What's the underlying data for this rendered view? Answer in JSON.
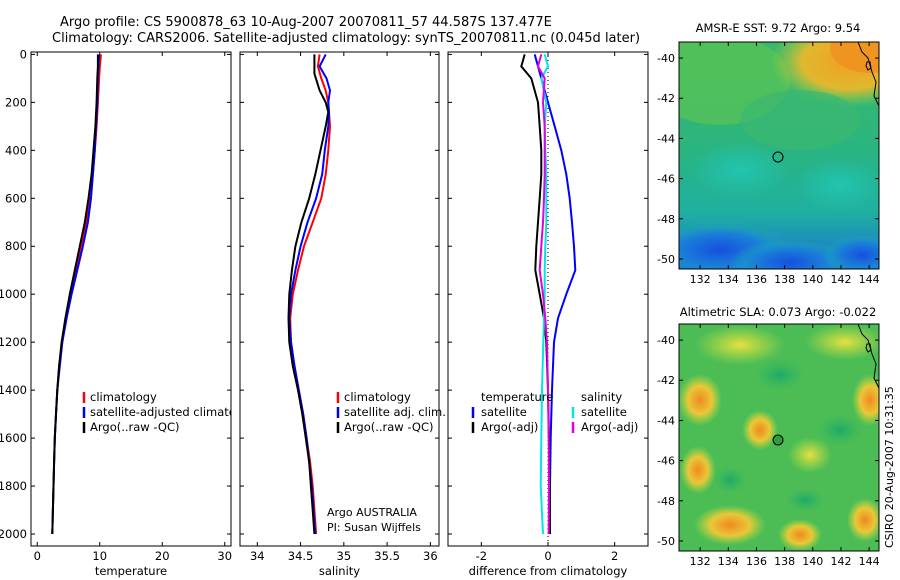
{
  "header": {
    "title_line1": "Argo profile: CS 5900878_63 10-Aug-2007 20070811_57 44.587S 137.477E",
    "title_line2": "Climatology: CARS2006. Satellite-adjusted climatology: synTS_20070811.nc (0.045d later)"
  },
  "colors": {
    "climatology": "#ff0000",
    "satellite": "#0000ff",
    "argo": "#000000",
    "satellite_diff_s": "#00e5e5",
    "argo_adj_s": "#e000e0"
  },
  "chart_data": [
    {
      "type": "line",
      "xlabel": "temperature",
      "ylabel": "",
      "xlim": [
        -1,
        31
      ],
      "ylim": [
        2050,
        -10
      ],
      "xticks": [
        "0",
        "10",
        "20",
        "30"
      ],
      "yticks": [
        "0",
        "200",
        "400",
        "600",
        "800",
        "1000",
        "1200",
        "1400",
        "1600",
        "1800",
        "2000"
      ],
      "legend": [
        "climatology",
        "satellite-adjusted climatology",
        "Argo(..raw -QC)"
      ],
      "legend_position": "lower-left",
      "series": [
        {
          "name": "climatology",
          "color": "#ff0000",
          "y": [
            0,
            50,
            100,
            200,
            300,
            400,
            500,
            600,
            700,
            800,
            900,
            1000,
            1100,
            1200,
            1300,
            1400,
            1500,
            1600,
            1700,
            1800,
            1900,
            2000
          ],
          "values": [
            10.2,
            10.0,
            9.9,
            9.7,
            9.5,
            9.2,
            8.9,
            8.5,
            7.9,
            7.0,
            6.2,
            5.4,
            4.6,
            4.0,
            3.5,
            3.2,
            3.0,
            2.8,
            2.7,
            2.6,
            2.5,
            2.4
          ]
        },
        {
          "name": "satellite-adjusted climatology",
          "color": "#0000ff",
          "y": [
            0,
            50,
            100,
            200,
            300,
            400,
            500,
            600,
            700,
            800,
            900,
            1000,
            1100,
            1200,
            1300,
            1400,
            1500,
            1600,
            1700,
            1800,
            1900,
            2000
          ],
          "values": [
            9.9,
            9.8,
            9.7,
            9.6,
            9.4,
            9.2,
            8.9,
            8.6,
            8.1,
            7.3,
            6.4,
            5.5,
            4.7,
            4.0,
            3.6,
            3.2,
            3.0,
            2.8,
            2.7,
            2.6,
            2.5,
            2.4
          ]
        },
        {
          "name": "Argo(..raw -QC)",
          "color": "#000000",
          "y": [
            0,
            50,
            100,
            200,
            300,
            400,
            500,
            600,
            700,
            800,
            900,
            1000,
            1100,
            1200,
            1300,
            1400,
            1500,
            1600,
            1700,
            1800,
            1900,
            2000
          ],
          "values": [
            9.7,
            9.7,
            9.6,
            9.5,
            9.3,
            9.0,
            8.7,
            8.2,
            7.6,
            6.8,
            6.0,
            5.2,
            4.5,
            3.9,
            3.5,
            3.2,
            3.0,
            2.8,
            2.7,
            2.6,
            2.5,
            2.4
          ]
        }
      ]
    },
    {
      "type": "line",
      "xlabel": "salinity",
      "xlim": [
        33.8,
        36.1
      ],
      "ylim": [
        2050,
        -10
      ],
      "xticks": [
        "34",
        "34.5",
        "35",
        "35.5",
        "36"
      ],
      "legend": [
        "climatology",
        "satellite adj. clim.",
        "Argo(..raw -QC)"
      ],
      "legend_position": "lower-right",
      "annotation": [
        "Argo AUSTRALIA",
        "PI: Susan Wijffels"
      ],
      "series": [
        {
          "name": "climatology",
          "color": "#ff0000",
          "y": [
            0,
            50,
            100,
            150,
            200,
            250,
            300,
            400,
            500,
            600,
            700,
            800,
            900,
            1000,
            1100,
            1200,
            1300,
            1400,
            1500,
            1600,
            1700,
            1800,
            1900,
            2000
          ],
          "values": [
            34.72,
            34.7,
            34.74,
            34.79,
            34.82,
            34.83,
            34.84,
            34.82,
            34.79,
            34.74,
            34.64,
            34.54,
            34.47,
            34.41,
            34.38,
            34.39,
            34.43,
            34.48,
            34.53,
            34.57,
            34.61,
            34.64,
            34.66,
            34.68
          ]
        },
        {
          "name": "satellite adj. clim.",
          "color": "#0000ff",
          "y": [
            0,
            50,
            100,
            150,
            200,
            250,
            300,
            400,
            500,
            600,
            700,
            800,
            900,
            1000,
            1100,
            1200,
            1300,
            1400,
            1500,
            1600,
            1700,
            1800,
            1900,
            2000
          ],
          "values": [
            34.79,
            34.72,
            34.8,
            34.84,
            34.82,
            34.83,
            34.82,
            34.78,
            34.75,
            34.68,
            34.58,
            34.5,
            34.44,
            34.39,
            34.37,
            34.39,
            34.43,
            34.48,
            34.53,
            34.57,
            34.6,
            34.63,
            34.65,
            34.67
          ]
        },
        {
          "name": "Argo(..raw -QC)",
          "color": "#000000",
          "y": [
            0,
            20,
            80,
            150,
            200,
            240,
            300,
            400,
            500,
            600,
            700,
            800,
            900,
            1000,
            1100,
            1200,
            1300,
            1400,
            1500,
            1600,
            1700,
            1800,
            1900,
            2000
          ],
          "values": [
            34.66,
            34.66,
            34.66,
            34.72,
            34.79,
            34.82,
            34.79,
            34.73,
            34.67,
            34.6,
            34.51,
            34.44,
            34.4,
            34.37,
            34.36,
            34.37,
            34.41,
            34.47,
            34.52,
            34.56,
            34.6,
            34.62,
            34.64,
            34.66
          ]
        }
      ]
    },
    {
      "type": "line",
      "xlabel": "difference from climatology",
      "xlim": [
        -3.0,
        3.0
      ],
      "ylim": [
        2050,
        -10
      ],
      "xticks": [
        "-2",
        "0",
        "2"
      ],
      "legend_columns": [
        {
          "header": "temperature",
          "entries": [
            "satellite",
            "Argo(-adj)"
          ]
        },
        {
          "header": "salinity",
          "entries": [
            "satellite",
            "Argo(-adj)"
          ]
        }
      ],
      "series": [
        {
          "name": "temperature satellite",
          "color": "#0000ff",
          "y": [
            0,
            50,
            100,
            200,
            300,
            400,
            500,
            600,
            700,
            800,
            900,
            1000,
            1100,
            1200,
            1400,
            1600,
            1800,
            2000
          ],
          "values": [
            -0.4,
            -0.3,
            -0.2,
            0.0,
            0.2,
            0.4,
            0.55,
            0.65,
            0.72,
            0.78,
            0.82,
            0.55,
            0.3,
            0.18,
            0.12,
            0.08,
            0.06,
            0.05
          ]
        },
        {
          "name": "temperature Argo(-adj)",
          "color": "#000000",
          "y": [
            0,
            50,
            100,
            200,
            300,
            400,
            500,
            600,
            700,
            800,
            900,
            1000,
            1100,
            1200,
            1400,
            1600,
            1800,
            2000
          ],
          "values": [
            -0.7,
            -0.8,
            -0.5,
            -0.3,
            -0.25,
            -0.2,
            -0.2,
            -0.25,
            -0.3,
            -0.35,
            -0.38,
            -0.25,
            -0.12,
            -0.05,
            0.0,
            0.03,
            0.05,
            0.06
          ]
        },
        {
          "name": "salinity satellite",
          "color": "#00e5e5",
          "y": [
            0,
            50,
            100,
            200,
            300,
            400,
            500,
            600,
            700,
            800,
            900,
            1000,
            1100,
            1200,
            1400,
            1600,
            1800,
            2000
          ],
          "values": [
            -0.1,
            0.0,
            -0.2,
            -0.05,
            -0.1,
            -0.08,
            -0.05,
            -0.05,
            -0.05,
            -0.08,
            -0.1,
            -0.1,
            -0.12,
            -0.14,
            -0.18,
            -0.2,
            -0.22,
            -0.15
          ]
        },
        {
          "name": "salinity Argo(-adj)",
          "color": "#e000e0",
          "y": [
            0,
            50,
            100,
            200,
            300,
            400,
            500,
            600,
            700,
            800,
            900,
            1000,
            1100,
            1200,
            1400,
            1600,
            1800,
            2000
          ],
          "values": [
            -0.2,
            -0.3,
            -0.1,
            -0.15,
            -0.1,
            -0.1,
            -0.1,
            -0.12,
            -0.15,
            -0.2,
            -0.25,
            -0.15,
            -0.08,
            -0.03,
            0.0,
            0.02,
            0.03,
            0.02
          ]
        }
      ]
    },
    {
      "type": "heatmap",
      "title": "AMSR-E SST: 9.72 Argo: 9.54",
      "xlim": [
        130.5,
        144.7
      ],
      "ylim": [
        -50.5,
        -39.2
      ],
      "xticks": [
        "132",
        "134",
        "136",
        "138",
        "140",
        "142",
        "144"
      ],
      "yticks": [
        "-40",
        "-42",
        "-44",
        "-46",
        "-48",
        "-50"
      ],
      "marker": {
        "lon": 137.477,
        "lat": -44.587
      }
    },
    {
      "type": "heatmap",
      "title": "Altimetric SLA: 0.073 Argo: -0.022",
      "xlim": [
        130.5,
        144.7
      ],
      "ylim": [
        -50.5,
        -39.2
      ],
      "xticks": [
        "132",
        "134",
        "136",
        "138",
        "140",
        "142",
        "144"
      ],
      "yticks": [
        "-40",
        "-42",
        "-44",
        "-46",
        "-48",
        "-50"
      ],
      "marker": {
        "lon": 137.477,
        "lat": -44.587
      }
    }
  ],
  "footer": {
    "stamp": "CSIRO 20-Aug-2007 10:31:35"
  }
}
